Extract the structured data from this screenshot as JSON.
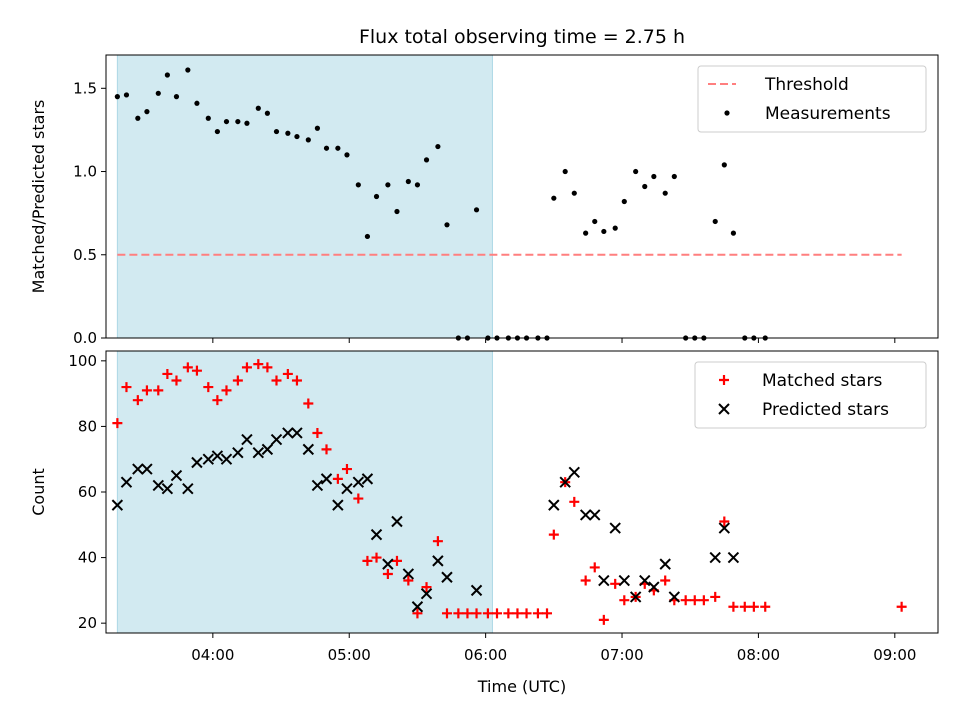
{
  "figure": {
    "title": "Flux total observing time = 2.75 h",
    "xlabel": "Time (UTC)",
    "x_ticks": [
      "04:00",
      "05:00",
      "06:00",
      "07:00",
      "08:00",
      "09:00"
    ]
  },
  "colors": {
    "shade": "#add8e6",
    "threshold": "#ff7f7f",
    "measurement": "#000000",
    "matched": "#ff0000",
    "predicted": "#000000"
  },
  "chart_data": [
    {
      "type": "scatter",
      "panel": "top",
      "ylabel": "Matched/Predicted stars",
      "xlim": [
        "03:13",
        "09:19"
      ],
      "ylim": [
        0,
        1.7
      ],
      "y_ticks": [
        "0.0",
        "0.5",
        "1.0",
        "1.5"
      ],
      "shaded_interval": [
        "03:18",
        "06:03"
      ],
      "legend": {
        "position": "top-right",
        "entries": [
          "Threshold",
          "Measurements"
        ]
      },
      "threshold": {
        "name": "Threshold",
        "y": 0.5,
        "x_range": [
          "03:18",
          "09:03"
        ],
        "style": "dashed"
      },
      "series": [
        {
          "name": "Measurements",
          "marker": "dot",
          "points": [
            [
              "03:18",
              1.45
            ],
            [
              "03:22",
              1.46
            ],
            [
              "03:27",
              1.32
            ],
            [
              "03:31",
              1.36
            ],
            [
              "03:36",
              1.47
            ],
            [
              "03:40",
              1.58
            ],
            [
              "03:44",
              1.45
            ],
            [
              "03:49",
              1.61
            ],
            [
              "03:53",
              1.41
            ],
            [
              "03:58",
              1.32
            ],
            [
              "04:02",
              1.24
            ],
            [
              "04:06",
              1.3
            ],
            [
              "04:11",
              1.3
            ],
            [
              "04:15",
              1.29
            ],
            [
              "04:20",
              1.38
            ],
            [
              "04:24",
              1.35
            ],
            [
              "04:28",
              1.24
            ],
            [
              "04:33",
              1.23
            ],
            [
              "04:37",
              1.21
            ],
            [
              "04:42",
              1.19
            ],
            [
              "04:46",
              1.26
            ],
            [
              "04:50",
              1.14
            ],
            [
              "04:55",
              1.14
            ],
            [
              "04:59",
              1.1
            ],
            [
              "05:04",
              0.92
            ],
            [
              "05:08",
              0.61
            ],
            [
              "05:12",
              0.85
            ],
            [
              "05:17",
              0.92
            ],
            [
              "05:21",
              0.76
            ],
            [
              "05:26",
              0.94
            ],
            [
              "05:30",
              0.92
            ],
            [
              "05:34",
              1.07
            ],
            [
              "05:39",
              1.15
            ],
            [
              "05:43",
              0.68
            ],
            [
              "05:48",
              0.0
            ],
            [
              "05:52",
              0.0
            ],
            [
              "05:56",
              0.77
            ],
            [
              "06:01",
              0.0
            ],
            [
              "06:05",
              0.0
            ],
            [
              "06:10",
              0.0
            ],
            [
              "06:14",
              0.0
            ],
            [
              "06:18",
              0.0
            ],
            [
              "06:23",
              0.0
            ],
            [
              "06:27",
              0.0
            ],
            [
              "06:30",
              0.84
            ],
            [
              "06:35",
              1.0
            ],
            [
              "06:39",
              0.87
            ],
            [
              "06:44",
              0.63
            ],
            [
              "06:48",
              0.7
            ],
            [
              "06:52",
              0.64
            ],
            [
              "06:57",
              0.66
            ],
            [
              "07:01",
              0.82
            ],
            [
              "07:06",
              1.0
            ],
            [
              "07:10",
              0.91
            ],
            [
              "07:14",
              0.97
            ],
            [
              "07:19",
              0.87
            ],
            [
              "07:23",
              0.97
            ],
            [
              "07:28",
              0.0
            ],
            [
              "07:32",
              0.0
            ],
            [
              "07:36",
              0.0
            ],
            [
              "07:41",
              0.7
            ],
            [
              "07:45",
              1.04
            ],
            [
              "07:49",
              0.63
            ],
            [
              "07:54",
              0.0
            ],
            [
              "07:58",
              0.0
            ],
            [
              "08:03",
              0.0
            ]
          ]
        }
      ]
    },
    {
      "type": "scatter",
      "panel": "bottom",
      "ylabel": "Count",
      "xlim": [
        "03:13",
        "09:19"
      ],
      "ylim": [
        17,
        103
      ],
      "y_ticks": [
        "20",
        "40",
        "60",
        "80",
        "100"
      ],
      "shaded_interval": [
        "03:18",
        "06:03"
      ],
      "legend": {
        "position": "top-right",
        "entries": [
          "Matched stars",
          "Predicted stars"
        ]
      },
      "series": [
        {
          "name": "Matched stars",
          "marker": "plus",
          "points": [
            [
              "03:18",
              81
            ],
            [
              "03:22",
              92
            ],
            [
              "03:27",
              88
            ],
            [
              "03:31",
              91
            ],
            [
              "03:36",
              91
            ],
            [
              "03:40",
              96
            ],
            [
              "03:44",
              94
            ],
            [
              "03:49",
              98
            ],
            [
              "03:53",
              97
            ],
            [
              "03:58",
              92
            ],
            [
              "04:02",
              88
            ],
            [
              "04:06",
              91
            ],
            [
              "04:11",
              94
            ],
            [
              "04:15",
              98
            ],
            [
              "04:20",
              99
            ],
            [
              "04:24",
              98
            ],
            [
              "04:28",
              94
            ],
            [
              "04:33",
              96
            ],
            [
              "04:37",
              94
            ],
            [
              "04:42",
              87
            ],
            [
              "04:46",
              78
            ],
            [
              "04:50",
              73
            ],
            [
              "04:55",
              64
            ],
            [
              "04:59",
              67
            ],
            [
              "05:04",
              58
            ],
            [
              "05:08",
              39
            ],
            [
              "05:12",
              40
            ],
            [
              "05:17",
              35
            ],
            [
              "05:21",
              39
            ],
            [
              "05:26",
              33
            ],
            [
              "05:30",
              23
            ],
            [
              "05:34",
              31
            ],
            [
              "05:39",
              45
            ],
            [
              "05:43",
              23
            ],
            [
              "05:48",
              23
            ],
            [
              "05:52",
              23
            ],
            [
              "05:56",
              23
            ],
            [
              "06:01",
              23
            ],
            [
              "06:05",
              23
            ],
            [
              "06:10",
              23
            ],
            [
              "06:14",
              23
            ],
            [
              "06:18",
              23
            ],
            [
              "06:23",
              23
            ],
            [
              "06:27",
              23
            ],
            [
              "06:30",
              47
            ],
            [
              "06:35",
              63
            ],
            [
              "06:39",
              57
            ],
            [
              "06:44",
              33
            ],
            [
              "06:48",
              37
            ],
            [
              "06:52",
              21
            ],
            [
              "06:57",
              32
            ],
            [
              "07:01",
              27
            ],
            [
              "07:06",
              28
            ],
            [
              "07:10",
              32
            ],
            [
              "07:14",
              30
            ],
            [
              "07:19",
              33
            ],
            [
              "07:23",
              27
            ],
            [
              "07:28",
              27
            ],
            [
              "07:32",
              27
            ],
            [
              "07:36",
              27
            ],
            [
              "07:41",
              28
            ],
            [
              "07:45",
              51
            ],
            [
              "07:49",
              25
            ],
            [
              "07:54",
              25
            ],
            [
              "07:58",
              25
            ],
            [
              "08:03",
              25
            ],
            [
              "09:03",
              25
            ]
          ]
        },
        {
          "name": "Predicted stars",
          "marker": "x",
          "points": [
            [
              "03:18",
              56
            ],
            [
              "03:22",
              63
            ],
            [
              "03:27",
              67
            ],
            [
              "03:31",
              67
            ],
            [
              "03:36",
              62
            ],
            [
              "03:40",
              61
            ],
            [
              "03:44",
              65
            ],
            [
              "03:49",
              61
            ],
            [
              "03:53",
              69
            ],
            [
              "03:58",
              70
            ],
            [
              "04:02",
              71
            ],
            [
              "04:06",
              70
            ],
            [
              "04:11",
              72
            ],
            [
              "04:15",
              76
            ],
            [
              "04:20",
              72
            ],
            [
              "04:24",
              73
            ],
            [
              "04:28",
              76
            ],
            [
              "04:33",
              78
            ],
            [
              "04:37",
              78
            ],
            [
              "04:42",
              73
            ],
            [
              "04:46",
              62
            ],
            [
              "04:50",
              64
            ],
            [
              "04:55",
              56
            ],
            [
              "04:59",
              61
            ],
            [
              "05:04",
              63
            ],
            [
              "05:08",
              64
            ],
            [
              "05:12",
              47
            ],
            [
              "05:17",
              38
            ],
            [
              "05:21",
              51
            ],
            [
              "05:26",
              35
            ],
            [
              "05:30",
              25
            ],
            [
              "05:34",
              29
            ],
            [
              "05:39",
              39
            ],
            [
              "05:43",
              34
            ],
            [
              "05:56",
              30
            ],
            [
              "06:30",
              56
            ],
            [
              "06:35",
              63
            ],
            [
              "06:39",
              66
            ],
            [
              "06:44",
              53
            ],
            [
              "06:48",
              53
            ],
            [
              "06:52",
              33
            ],
            [
              "06:57",
              49
            ],
            [
              "07:01",
              33
            ],
            [
              "07:06",
              28
            ],
            [
              "07:10",
              33
            ],
            [
              "07:14",
              31
            ],
            [
              "07:19",
              38
            ],
            [
              "07:23",
              28
            ],
            [
              "07:41",
              40
            ],
            [
              "07:45",
              49
            ],
            [
              "07:49",
              40
            ]
          ]
        }
      ]
    }
  ]
}
